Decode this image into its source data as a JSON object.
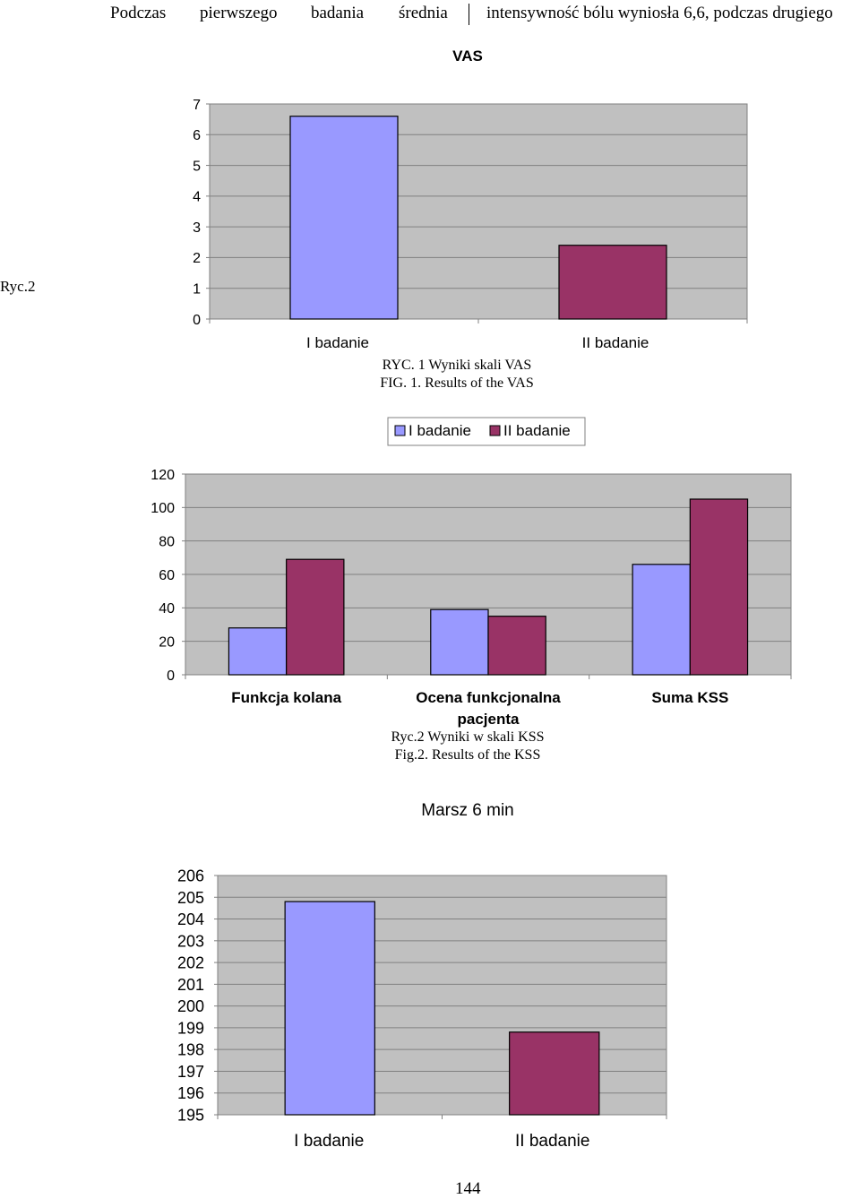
{
  "header": {
    "words": [
      "Podczas",
      "pierwszego",
      "badania",
      "średnia"
    ],
    "rest": "intensywność bólu wyniosła 6,6, podczas drugiego"
  },
  "side_label": "Ryc.2",
  "page_number": "144",
  "colors": {
    "series1": "#9999FF",
    "series2": "#993366",
    "plot_bg": "#C0C0C0",
    "gridline": "#808080"
  },
  "chart_data": [
    {
      "id": "vas",
      "type": "bar",
      "title": "VAS",
      "categories": [
        "I badanie",
        "II badanie"
      ],
      "values": [
        6.6,
        2.4
      ],
      "ylim": [
        0,
        7
      ],
      "yticks": [
        0,
        1,
        2,
        3,
        4,
        5,
        6,
        7
      ],
      "grid": true,
      "caption": [
        "RYC. 1 Wyniki skali VAS",
        "FIG. 1. Results of the VAS"
      ]
    },
    {
      "id": "kss",
      "type": "bar",
      "title": "",
      "categories": [
        "Funkcja kolana",
        "Ocena funkcjonalna pacjenta",
        "Suma KSS"
      ],
      "category_lines": [
        [
          "Funkcja kolana"
        ],
        [
          "Ocena funkcjonalna",
          "pacjenta"
        ],
        [
          "Suma KSS"
        ]
      ],
      "series": [
        {
          "name": "I badanie",
          "values": [
            28,
            39,
            66
          ]
        },
        {
          "name": "II badanie",
          "values": [
            69,
            35,
            105
          ]
        }
      ],
      "ylim": [
        0,
        120
      ],
      "yticks": [
        0,
        20,
        40,
        60,
        80,
        100,
        120
      ],
      "grid": true,
      "legend": "top-center",
      "caption": [
        "Ryc.2 Wyniki w skali KSS",
        "Fig.2. Results of the KSS"
      ]
    },
    {
      "id": "marsz",
      "type": "bar",
      "title": "Marsz 6 min",
      "categories": [
        "I badanie",
        "II badanie"
      ],
      "values": [
        204.8,
        198.8
      ],
      "ylim": [
        195,
        206
      ],
      "yticks": [
        195,
        196,
        197,
        198,
        199,
        200,
        201,
        202,
        203,
        204,
        205,
        206
      ],
      "grid": true
    }
  ]
}
